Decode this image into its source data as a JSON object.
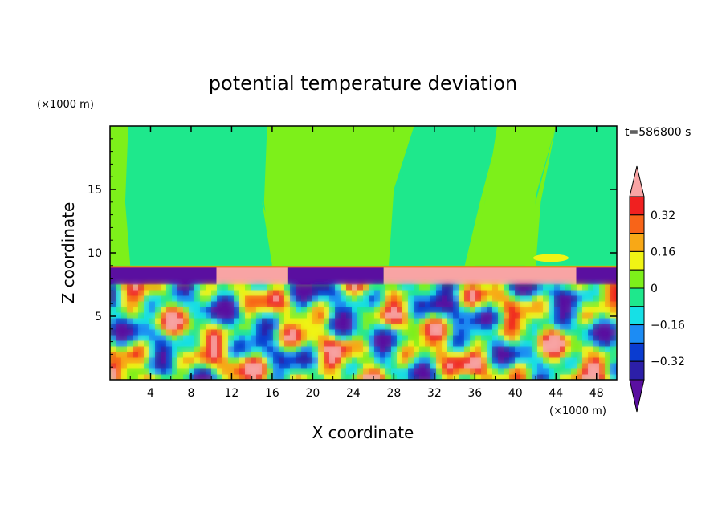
{
  "chart_data": {
    "type": "heatmap",
    "title": "potential temperature deviation",
    "xlabel": "X coordinate",
    "ylabel": "Z coordinate",
    "x_unit": "(×1000 m)",
    "y_unit": "(×1000 m)",
    "time_label": "t=586800 s",
    "xlim": [
      0,
      50
    ],
    "ylim": [
      0,
      20
    ],
    "x_ticks": [
      4,
      8,
      12,
      16,
      20,
      24,
      28,
      32,
      36,
      40,
      44,
      48
    ],
    "y_ticks": [
      5,
      10,
      15
    ],
    "grid": false,
    "legend": "colorbar-right",
    "colorbar": {
      "levels": [
        -0.4,
        -0.32,
        -0.24,
        -0.16,
        -0.08,
        0,
        0.08,
        0.16,
        0.24,
        0.32,
        0.4
      ],
      "colors": [
        "#5a0fa0",
        "#2c1fa8",
        "#0a3cd0",
        "#1c8cf4",
        "#16e0e6",
        "#1ee88c",
        "#7df01a",
        "#f0f414",
        "#f8a816",
        "#f86418",
        "#f02020",
        "#f8a4a4"
      ],
      "tick_labels": [
        "0.32",
        "0.16",
        "0",
        "-0.16",
        "-0.32"
      ],
      "tick_values": [
        0.32,
        0.16,
        0,
        -0.16,
        -0.32
      ],
      "extend": "both"
    },
    "regions": [
      {
        "name": "upper layer",
        "z_range": [
          9,
          20
        ],
        "value_range": [
          0,
          0.08
        ]
      },
      {
        "name": "cold band",
        "z_range": [
          7.6,
          8.8
        ],
        "value": -0.4
      },
      {
        "name": "warm band",
        "z_range": [
          7.6,
          8.8
        ],
        "value": 0.4
      },
      {
        "name": "turbulent layer",
        "z_range": [
          0,
          7.6
        ],
        "value_range": [
          -0.4,
          0.4
        ]
      }
    ]
  }
}
